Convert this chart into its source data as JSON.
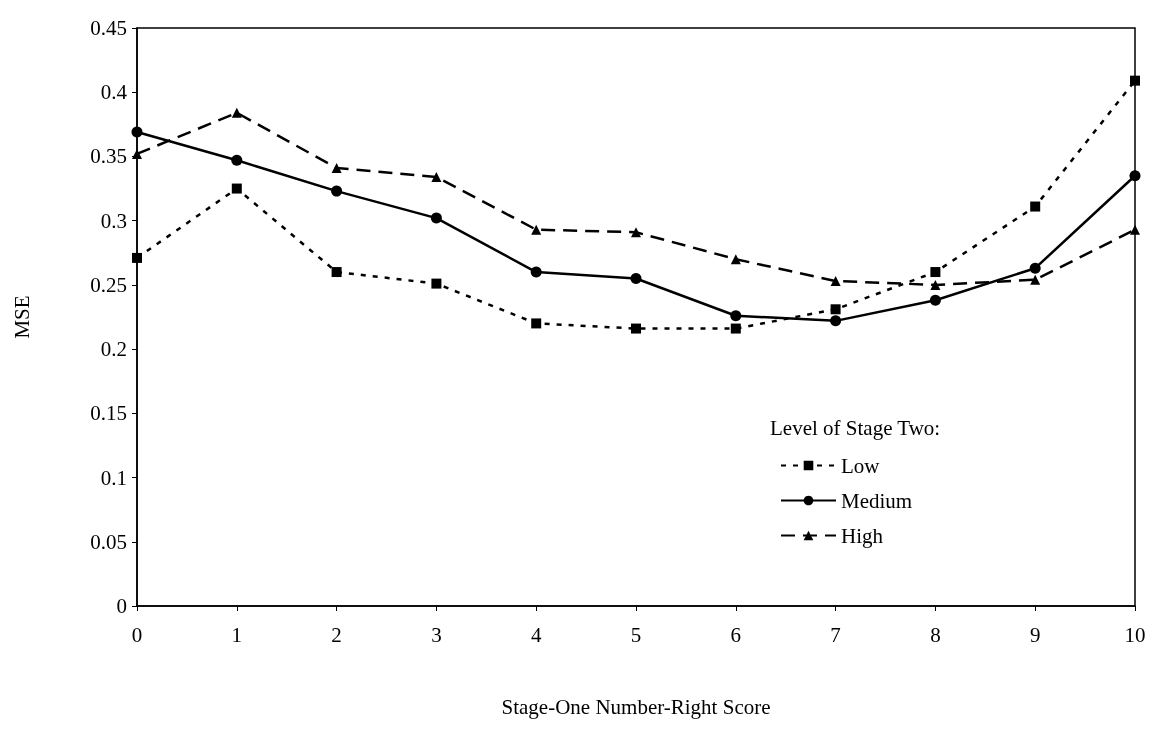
{
  "chart_data": {
    "type": "line",
    "xlabel": "Stage-One Number-Right Score",
    "ylabel": "MSE",
    "legend_title": "Level of Stage Two:",
    "x": [
      0,
      1,
      2,
      3,
      4,
      5,
      6,
      7,
      8,
      9,
      10
    ],
    "series": [
      {
        "name": "Low",
        "color": "#000000",
        "marker": "square",
        "line_style": "dotted",
        "values": [
          0.271,
          0.325,
          0.26,
          0.251,
          0.22,
          0.216,
          0.216,
          0.231,
          0.26,
          0.311,
          0.409
        ]
      },
      {
        "name": "Medium",
        "color": "#000000",
        "marker": "circle",
        "line_style": "solid",
        "values": [
          0.369,
          0.347,
          0.323,
          0.302,
          0.26,
          0.255,
          0.226,
          0.222,
          0.238,
          0.263,
          0.335
        ]
      },
      {
        "name": "High",
        "color": "#000000",
        "marker": "triangle",
        "line_style": "dashed",
        "values": [
          0.352,
          0.384,
          0.341,
          0.334,
          0.293,
          0.291,
          0.27,
          0.253,
          0.25,
          0.254,
          0.293
        ]
      }
    ],
    "xlim": [
      0,
      10
    ],
    "xticks": [
      0,
      1,
      2,
      3,
      4,
      5,
      6,
      7,
      8,
      9,
      10
    ],
    "ylim": [
      0,
      0.45
    ],
    "yticks": [
      0,
      0.05,
      0.1,
      0.15,
      0.2,
      0.25,
      0.3,
      0.35,
      0.4,
      0.45
    ],
    "grid": false,
    "legend": "bottom right"
  }
}
